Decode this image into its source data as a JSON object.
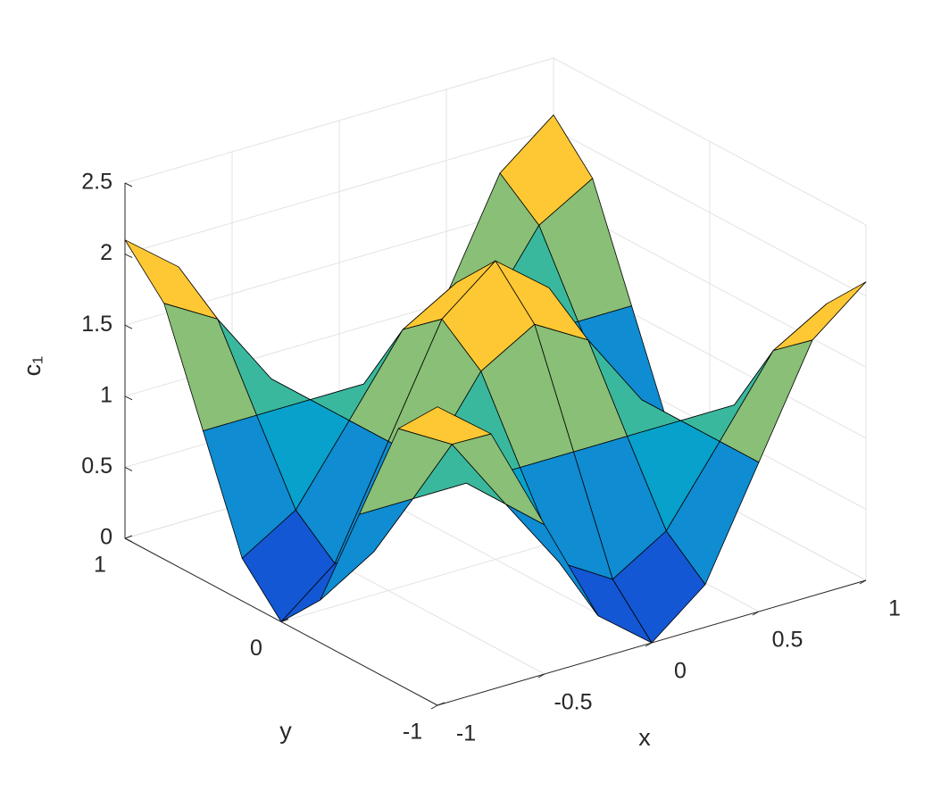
{
  "chart_data": {
    "type": "surface",
    "x": [
      -1,
      -0.75,
      -0.5,
      -0.25,
      0,
      0.25,
      0.5,
      0.75,
      1
    ],
    "y": [
      -1,
      -0.75,
      -0.5,
      -0.25,
      0,
      0.25,
      0.5,
      0.75,
      1
    ],
    "z": [
      [
        2.1,
        1.8,
        1.05,
        0.3,
        0,
        0.3,
        1.05,
        1.8,
        2.1
      ],
      [
        1.8,
        1.58,
        1.05,
        0.53,
        0.3,
        0.53,
        1.05,
        1.58,
        1.8
      ],
      [
        1.05,
        1.05,
        1.05,
        1.05,
        1.05,
        1.05,
        1.05,
        1.05,
        1.05
      ],
      [
        0.3,
        0.53,
        1.05,
        1.58,
        1.8,
        1.58,
        1.05,
        0.53,
        0.3
      ],
      [
        0,
        0.3,
        1.05,
        1.8,
        2.1,
        1.8,
        1.05,
        0.3,
        0
      ],
      [
        0.3,
        0.53,
        1.05,
        1.58,
        1.8,
        1.58,
        1.05,
        0.53,
        0.3
      ],
      [
        1.05,
        1.05,
        1.05,
        1.05,
        1.05,
        1.05,
        1.05,
        1.05,
        1.05
      ],
      [
        1.8,
        1.58,
        1.05,
        0.53,
        0.3,
        0.53,
        1.05,
        1.58,
        1.8
      ],
      [
        2.1,
        1.8,
        1.05,
        0.3,
        0,
        0.3,
        1.05,
        1.8,
        2.1
      ]
    ],
    "xlim": [
      -1,
      1
    ],
    "ylim": [
      -1,
      1
    ],
    "zlim": [
      0,
      2.5
    ],
    "xticks": [
      -1,
      -0.5,
      0,
      0.5,
      1
    ],
    "yticks": [
      -1,
      0,
      1
    ],
    "zticks": [
      0,
      0.5,
      1,
      1.5,
      2,
      2.5
    ],
    "xlabel": "x",
    "ylabel": "y",
    "zlabel": "c₁",
    "colormap": "parula",
    "edgecolor": "#000000",
    "grid": true
  }
}
